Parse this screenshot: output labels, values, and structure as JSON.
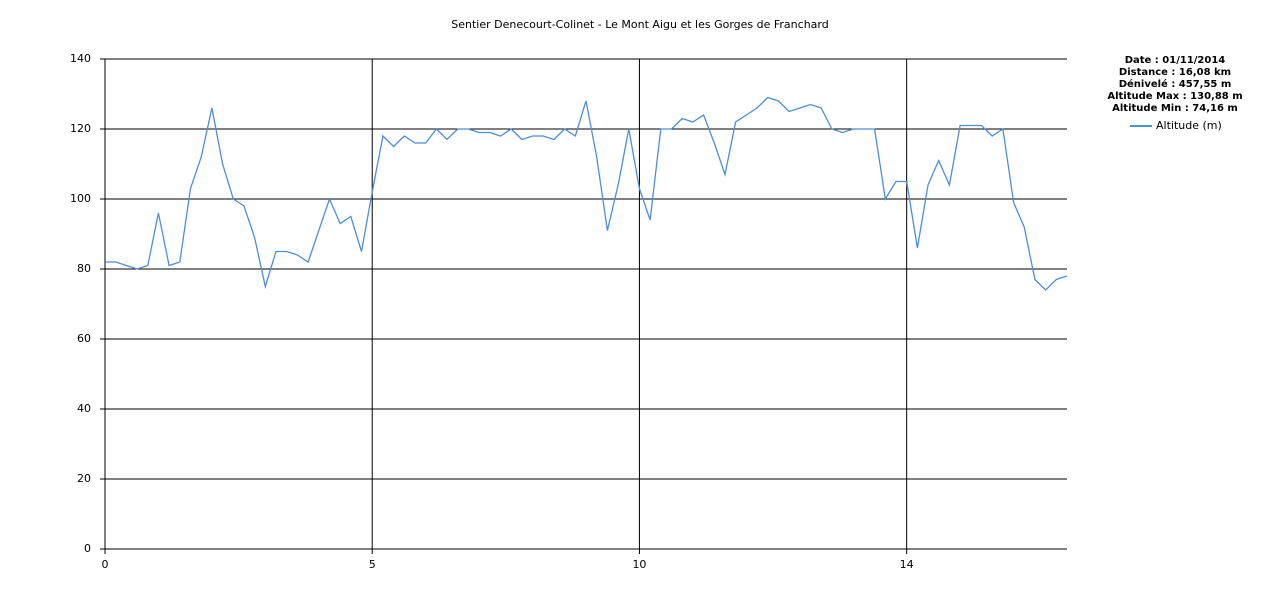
{
  "chart_data": {
    "type": "line",
    "title": "Sentier Denecourt-Colinet - Le Mont Aigu et les Gorges de Franchard",
    "info": [
      "Date : 01/11/2014",
      "Distance : 16,08 km",
      "Dénivelé : 457,55 m",
      "Altitude Max : 130,88 m",
      "Altitude Min : 74,16 m"
    ],
    "categories": [
      "0",
      null,
      null,
      null,
      null,
      null,
      null,
      null,
      null,
      null,
      null,
      null,
      null,
      null,
      null,
      null,
      null,
      null,
      null,
      null,
      null,
      null,
      null,
      null,
      null,
      "5",
      null,
      null,
      null,
      null,
      null,
      null,
      null,
      null,
      null,
      null,
      null,
      null,
      null,
      null,
      null,
      null,
      null,
      null,
      null,
      null,
      null,
      null,
      null,
      null,
      "10",
      null,
      null,
      null,
      null,
      null,
      null,
      null,
      null,
      null,
      null,
      null,
      null,
      null,
      null,
      null,
      null,
      null,
      null,
      null,
      null,
      null,
      null,
      null,
      null,
      "14",
      null,
      null,
      null,
      null,
      null,
      null,
      null,
      null,
      null,
      null,
      null,
      null,
      null,
      null,
      null
    ],
    "series": [
      {
        "name": "Altitude (m)",
        "color": "#4a8fd8",
        "values": [
          82,
          82,
          81,
          80,
          81,
          96,
          81,
          82,
          103,
          112,
          126,
          110,
          100,
          98,
          89,
          75,
          85,
          85,
          84,
          82,
          91,
          100,
          93,
          95,
          85,
          102,
          118,
          115,
          118,
          116,
          116,
          120,
          117,
          120,
          120,
          119,
          119,
          118,
          120,
          117,
          118,
          118,
          117,
          120,
          118,
          128,
          112,
          91,
          104,
          120,
          103,
          94,
          120,
          120,
          123,
          122,
          124,
          116,
          107,
          122,
          124,
          126,
          129,
          128,
          125,
          126,
          127,
          126,
          120,
          119,
          120,
          120,
          120,
          100,
          105,
          105,
          86,
          104,
          111,
          104,
          121,
          121,
          121,
          118,
          120,
          99,
          92,
          77,
          74,
          77,
          78
        ]
      }
    ],
    "ylim": [
      0,
      140
    ],
    "yticks": [
      0,
      20,
      40,
      60,
      80,
      100,
      120,
      140
    ],
    "grid": true,
    "legend": "right"
  }
}
